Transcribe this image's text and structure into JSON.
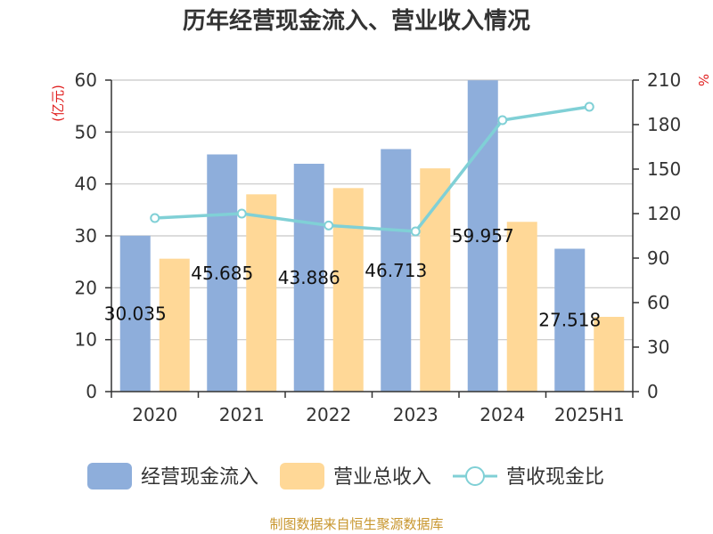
{
  "chart_data": {
    "type": "bar",
    "title": "历年经营现金流入、营业收入情况",
    "categories": [
      "2020",
      "2021",
      "2022",
      "2023",
      "2024",
      "2025H1"
    ],
    "series": [
      {
        "name": "经营现金流入",
        "kind": "bar",
        "axis": "left",
        "color": "#8eaedb",
        "values": [
          30.035,
          45.685,
          43.886,
          46.713,
          59.957,
          27.518
        ],
        "labels": [
          "30.035",
          "45.685",
          "43.886",
          "46.713",
          "59.957",
          "27.518"
        ]
      },
      {
        "name": "营业总收入",
        "kind": "bar",
        "axis": "left",
        "color": "#ffd897",
        "values": [
          25.6,
          38.0,
          39.2,
          43.0,
          32.7,
          14.4
        ]
      },
      {
        "name": "营收现金比",
        "kind": "line",
        "axis": "right",
        "color": "#80d0d6",
        "values": [
          117,
          120,
          112,
          108,
          183,
          192
        ]
      }
    ],
    "yleft": {
      "label": "(亿元)",
      "min": 0,
      "max": 60,
      "ticks": [
        0,
        10,
        20,
        30,
        40,
        50,
        60
      ]
    },
    "yright": {
      "label": "%",
      "min": 0,
      "max": 210,
      "ticks": [
        0,
        30,
        60,
        90,
        120,
        150,
        180,
        210
      ]
    },
    "grid": true,
    "legend": "bottom"
  },
  "source": "制图数据来自恒生聚源数据库"
}
